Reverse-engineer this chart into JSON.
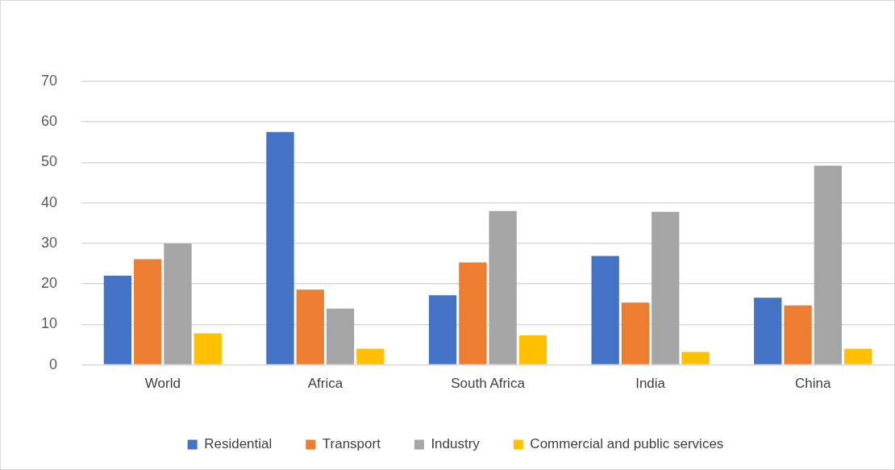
{
  "chart_data": {
    "type": "bar",
    "categories": [
      "World",
      "Africa",
      "South Africa",
      "India",
      "China"
    ],
    "series": [
      {
        "name": "Residential",
        "color": "#4472c4",
        "values": [
          22.0,
          57.5,
          17.2,
          26.9,
          16.6
        ]
      },
      {
        "name": "Transport",
        "color": "#ed7d31",
        "values": [
          26.1,
          18.6,
          25.3,
          15.4,
          14.7
        ]
      },
      {
        "name": "Industry",
        "color": "#a5a5a5",
        "values": [
          30.0,
          13.9,
          38.0,
          37.8,
          49.2
        ]
      },
      {
        "name": "Commercial and public services",
        "color": "#ffc000",
        "values": [
          7.8,
          4.0,
          7.3,
          3.2,
          4.0
        ]
      }
    ],
    "ylim": [
      0,
      70
    ],
    "yticks": [
      0,
      10,
      20,
      30,
      40,
      50,
      60,
      70
    ],
    "grid": "y",
    "legend": "bottom"
  }
}
